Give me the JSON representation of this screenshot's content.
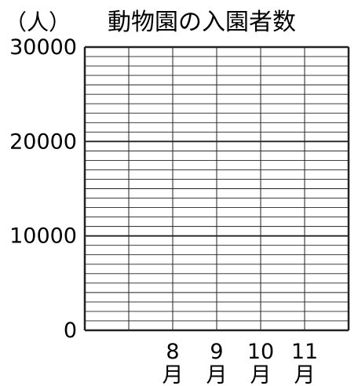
{
  "chart_data": {
    "type": "bar",
    "title": "動物園の入園者数",
    "ylabel": "（人）",
    "xlabel": "",
    "ylim": [
      0,
      30000
    ],
    "minor_step": 1000,
    "grid": true,
    "categories": [
      {
        "num": "",
        "unit": ""
      },
      {
        "num": "8",
        "unit": "月"
      },
      {
        "num": "9",
        "unit": "月"
      },
      {
        "num": "10",
        "unit": "月"
      },
      {
        "num": "11",
        "unit": "月"
      },
      {
        "num": "",
        "unit": ""
      }
    ],
    "y_ticks": [
      {
        "value": 0,
        "label": "0"
      },
      {
        "value": 10000,
        "label": "10000"
      },
      {
        "value": 20000,
        "label": "20000"
      },
      {
        "value": 30000,
        "label": "30000"
      }
    ],
    "series": [
      {
        "values": [
          null,
          null,
          null,
          null,
          null,
          null
        ]
      }
    ]
  }
}
